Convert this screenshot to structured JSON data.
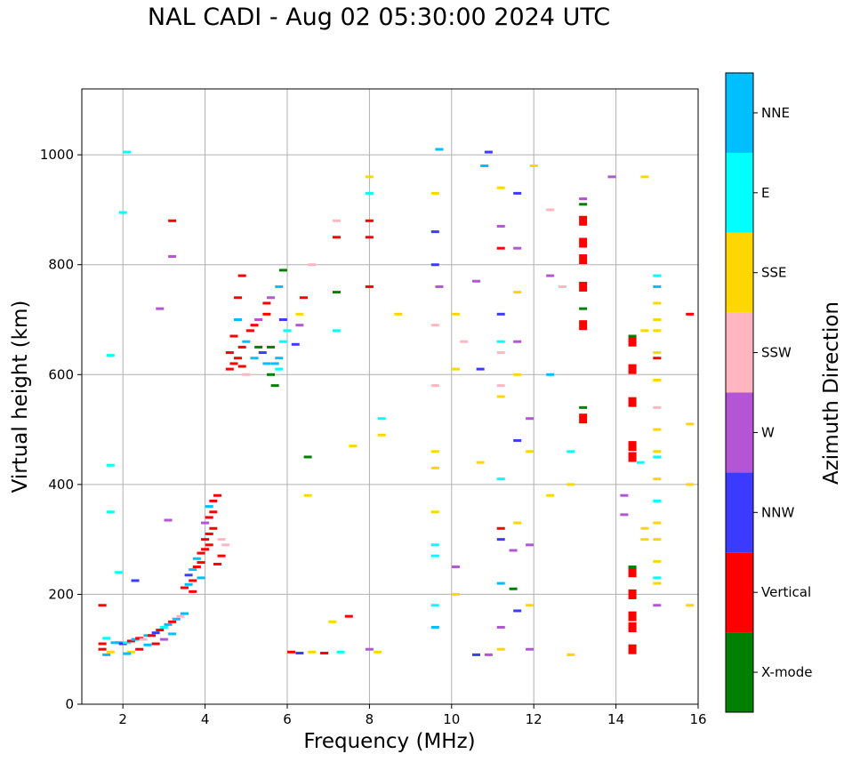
{
  "chart_data": {
    "type": "scatter",
    "title": "NAL CADI - Aug 02 05:30:00 2024 UTC",
    "xlabel": "Frequency (MHz)",
    "ylabel": "Virtual height (km)",
    "xlim": [
      1,
      16
    ],
    "ylim": [
      0,
      1120
    ],
    "xticks": [
      2,
      4,
      6,
      8,
      10,
      12,
      14,
      16
    ],
    "yticks": [
      0,
      200,
      400,
      600,
      800,
      1000
    ],
    "grid": true,
    "colorbar": {
      "title": "Azimuth Direction",
      "categories": [
        {
          "name": "X-mode",
          "color": "#008000"
        },
        {
          "name": "Vertical",
          "color": "#ff0000"
        },
        {
          "name": "NNW",
          "color": "#3b3bff"
        },
        {
          "name": "W",
          "color": "#b455d6"
        },
        {
          "name": "SSW",
          "color": "#ffb6c1"
        },
        {
          "name": "SSE",
          "color": "#ffd700"
        },
        {
          "name": "E",
          "color": "#00ffff"
        },
        {
          "name": "NNE",
          "color": "#00bfff"
        }
      ]
    },
    "points": [
      [
        1.5,
        100,
        "Vertical"
      ],
      [
        1.5,
        110,
        "Vertical"
      ],
      [
        1.6,
        90,
        "NNE"
      ],
      [
        1.6,
        120,
        "E"
      ],
      [
        1.7,
        95,
        "SSE"
      ],
      [
        1.5,
        180,
        "Vertical"
      ],
      [
        1.8,
        112,
        "NNE"
      ],
      [
        1.9,
        112,
        "NNE"
      ],
      [
        2.0,
        110,
        "NNW"
      ],
      [
        2.1,
        112,
        "E"
      ],
      [
        2.2,
        115,
        "Vertical"
      ],
      [
        2.3,
        118,
        "NNE"
      ],
      [
        2.4,
        120,
        "Vertical"
      ],
      [
        2.5,
        118,
        "SSW"
      ],
      [
        2.6,
        125,
        "NNE"
      ],
      [
        2.7,
        125,
        "Vertical"
      ],
      [
        2.8,
        130,
        "NNW"
      ],
      [
        2.9,
        135,
        "Vertical"
      ],
      [
        3.0,
        140,
        "E"
      ],
      [
        3.1,
        145,
        "NNE"
      ],
      [
        3.2,
        150,
        "Vertical"
      ],
      [
        3.3,
        155,
        "NNE"
      ],
      [
        3.4,
        160,
        "SSW"
      ],
      [
        3.5,
        165,
        "NNE"
      ],
      [
        2.2,
        95,
        "SSE"
      ],
      [
        2.4,
        100,
        "Vertical"
      ],
      [
        2.6,
        108,
        "NNE"
      ],
      [
        2.8,
        110,
        "Vertical"
      ],
      [
        3.0,
        118,
        "W"
      ],
      [
        3.2,
        128,
        "NNE"
      ],
      [
        2.1,
        92,
        "NNE"
      ],
      [
        3.5,
        212,
        "Vertical"
      ],
      [
        3.6,
        218,
        "NNE"
      ],
      [
        3.7,
        225,
        "Vertical"
      ],
      [
        3.6,
        235,
        "NNW"
      ],
      [
        3.7,
        245,
        "NNE"
      ],
      [
        3.8,
        250,
        "Vertical"
      ],
      [
        3.9,
        258,
        "Vertical"
      ],
      [
        3.8,
        265,
        "NNE"
      ],
      [
        3.9,
        275,
        "Vertical"
      ],
      [
        4.0,
        282,
        "Vertical"
      ],
      [
        4.1,
        290,
        "Vertical"
      ],
      [
        4.0,
        300,
        "Vertical"
      ],
      [
        4.1,
        310,
        "Vertical"
      ],
      [
        4.2,
        320,
        "Vertical"
      ],
      [
        4.0,
        330,
        "W"
      ],
      [
        4.1,
        340,
        "Vertical"
      ],
      [
        4.2,
        350,
        "Vertical"
      ],
      [
        4.1,
        360,
        "NNE"
      ],
      [
        4.2,
        370,
        "Vertical"
      ],
      [
        4.3,
        380,
        "Vertical"
      ],
      [
        4.4,
        300,
        "SSW"
      ],
      [
        4.5,
        290,
        "SSW"
      ],
      [
        4.3,
        255,
        "Vertical"
      ],
      [
        4.4,
        270,
        "Vertical"
      ],
      [
        3.7,
        205,
        "Vertical"
      ],
      [
        3.9,
        230,
        "NNE"
      ],
      [
        4.6,
        610,
        "Vertical"
      ],
      [
        4.7,
        620,
        "Vertical"
      ],
      [
        4.8,
        630,
        "Vertical"
      ],
      [
        4.6,
        640,
        "Vertical"
      ],
      [
        4.9,
        650,
        "Vertical"
      ],
      [
        5.0,
        660,
        "NNE"
      ],
      [
        4.7,
        670,
        "Vertical"
      ],
      [
        5.1,
        680,
        "Vertical"
      ],
      [
        5.2,
        690,
        "Vertical"
      ],
      [
        4.8,
        700,
        "NNE"
      ],
      [
        5.3,
        700,
        "W"
      ],
      [
        5.5,
        710,
        "Vertical"
      ],
      [
        4.8,
        740,
        "Vertical"
      ],
      [
        4.9,
        780,
        "Vertical"
      ],
      [
        5.4,
        640,
        "NNW"
      ],
      [
        5.6,
        650,
        "X-mode"
      ],
      [
        5.7,
        620,
        "NNE"
      ],
      [
        5.8,
        610,
        "E"
      ],
      [
        5.6,
        600,
        "X-mode"
      ],
      [
        5.7,
        580,
        "X-mode"
      ],
      [
        5.8,
        630,
        "NNE"
      ],
      [
        5.9,
        660,
        "E"
      ],
      [
        6.0,
        680,
        "E"
      ],
      [
        5.9,
        700,
        "NNW"
      ],
      [
        5.5,
        730,
        "Vertical"
      ],
      [
        5.6,
        740,
        "W"
      ],
      [
        5.8,
        760,
        "NNE"
      ],
      [
        5.9,
        790,
        "X-mode"
      ],
      [
        5.5,
        620,
        "NNE"
      ],
      [
        5.2,
        630,
        "NNE"
      ],
      [
        5.3,
        650,
        "X-mode"
      ],
      [
        5.0,
        600,
        "SSW"
      ],
      [
        4.9,
        615,
        "Vertical"
      ],
      [
        6.1,
        95,
        "Vertical"
      ],
      [
        6.3,
        93,
        "NNW"
      ],
      [
        6.6,
        95,
        "SSE"
      ],
      [
        6.9,
        93,
        "Vertical"
      ],
      [
        7.3,
        95,
        "E"
      ],
      [
        7.5,
        160,
        "Vertical"
      ],
      [
        7.1,
        150,
        "SSE"
      ],
      [
        6.5,
        450,
        "X-mode"
      ],
      [
        6.5,
        380,
        "SSE"
      ],
      [
        7.6,
        470,
        "SSE"
      ],
      [
        8.2,
        95,
        "SSE"
      ],
      [
        8.0,
        100,
        "W"
      ],
      [
        6.3,
        710,
        "SSE"
      ],
      [
        6.4,
        740,
        "Vertical"
      ],
      [
        6.2,
        655,
        "NNW"
      ],
      [
        6.3,
        690,
        "W"
      ],
      [
        6.6,
        800,
        "SSW"
      ],
      [
        8.0,
        760,
        "Vertical"
      ],
      [
        8.0,
        850,
        "Vertical"
      ],
      [
        8.0,
        880,
        "Vertical"
      ],
      [
        8.0,
        930,
        "E"
      ],
      [
        8.0,
        960,
        "SSE"
      ],
      [
        8.3,
        520,
        "E"
      ],
      [
        8.3,
        490,
        "SSE"
      ],
      [
        8.7,
        710,
        "SSE"
      ],
      [
        9.6,
        140,
        "NNE"
      ],
      [
        9.6,
        180,
        "E"
      ],
      [
        9.6,
        270,
        "E"
      ],
      [
        9.6,
        290,
        "E"
      ],
      [
        9.6,
        350,
        "SSE"
      ],
      [
        9.6,
        430,
        "SSE"
      ],
      [
        9.6,
        460,
        "SSE"
      ],
      [
        9.6,
        580,
        "SSW"
      ],
      [
        9.6,
        690,
        "SSW"
      ],
      [
        9.7,
        760,
        "W"
      ],
      [
        9.6,
        800,
        "NNW"
      ],
      [
        9.6,
        860,
        "NNW"
      ],
      [
        9.6,
        930,
        "SSE"
      ],
      [
        9.7,
        1010,
        "NNE"
      ],
      [
        10.1,
        200,
        "SSE"
      ],
      [
        10.1,
        250,
        "W"
      ],
      [
        10.1,
        610,
        "SSE"
      ],
      [
        10.1,
        710,
        "SSE"
      ],
      [
        10.3,
        660,
        "SSW"
      ],
      [
        10.6,
        770,
        "W"
      ],
      [
        10.7,
        610,
        "NNW"
      ],
      [
        10.6,
        90,
        "NNW"
      ],
      [
        10.9,
        90,
        "W"
      ],
      [
        10.7,
        440,
        "SSE"
      ],
      [
        10.8,
        980,
        "NNE"
      ],
      [
        10.9,
        1005,
        "NNW"
      ],
      [
        11.2,
        100,
        "SSE"
      ],
      [
        11.2,
        140,
        "W"
      ],
      [
        11.2,
        220,
        "NNE"
      ],
      [
        11.2,
        300,
        "NNW"
      ],
      [
        11.2,
        320,
        "Vertical"
      ],
      [
        11.2,
        410,
        "E"
      ],
      [
        11.2,
        560,
        "SSE"
      ],
      [
        11.2,
        580,
        "SSW"
      ],
      [
        11.2,
        640,
        "SSW"
      ],
      [
        11.2,
        660,
        "E"
      ],
      [
        11.2,
        710,
        "NNW"
      ],
      [
        11.2,
        830,
        "Vertical"
      ],
      [
        11.2,
        870,
        "W"
      ],
      [
        11.2,
        940,
        "SSE"
      ],
      [
        11.5,
        210,
        "X-mode"
      ],
      [
        11.5,
        280,
        "W"
      ],
      [
        11.6,
        170,
        "NNW"
      ],
      [
        11.6,
        330,
        "SSE"
      ],
      [
        11.6,
        480,
        "NNW"
      ],
      [
        11.6,
        600,
        "SSE"
      ],
      [
        11.6,
        660,
        "W"
      ],
      [
        11.6,
        750,
        "SSE"
      ],
      [
        11.6,
        830,
        "W"
      ],
      [
        11.6,
        930,
        "NNW"
      ],
      [
        11.9,
        100,
        "W"
      ],
      [
        11.9,
        180,
        "SSE"
      ],
      [
        11.9,
        290,
        "W"
      ],
      [
        11.9,
        460,
        "SSE"
      ],
      [
        11.9,
        520,
        "W"
      ],
      [
        12.0,
        980,
        "SSE"
      ],
      [
        12.4,
        380,
        "SSE"
      ],
      [
        12.4,
        600,
        "NNE"
      ],
      [
        12.4,
        780,
        "W"
      ],
      [
        12.4,
        900,
        "SSW"
      ],
      [
        12.7,
        760,
        "SSW"
      ],
      [
        12.9,
        90,
        "SSE"
      ],
      [
        12.9,
        400,
        "SSE"
      ],
      [
        12.9,
        460,
        "E"
      ],
      [
        13.2,
        520,
        "Vertical"
      ],
      [
        13.2,
        540,
        "X-mode"
      ],
      [
        13.2,
        690,
        "Vertical"
      ],
      [
        13.2,
        720,
        "X-mode"
      ],
      [
        13.2,
        760,
        "Vertical"
      ],
      [
        13.2,
        810,
        "Vertical"
      ],
      [
        13.2,
        840,
        "Vertical"
      ],
      [
        13.2,
        880,
        "Vertical"
      ],
      [
        13.2,
        910,
        "X-mode"
      ],
      [
        13.2,
        920,
        "W"
      ],
      [
        13.9,
        960,
        "W"
      ],
      [
        14.2,
        380,
        "W"
      ],
      [
        14.2,
        345,
        "W"
      ],
      [
        14.4,
        100,
        "Vertical"
      ],
      [
        14.4,
        140,
        "Vertical"
      ],
      [
        14.4,
        160,
        "Vertical"
      ],
      [
        14.4,
        200,
        "Vertical"
      ],
      [
        14.4,
        240,
        "Vertical"
      ],
      [
        14.4,
        250,
        "X-mode"
      ],
      [
        14.4,
        450,
        "Vertical"
      ],
      [
        14.4,
        470,
        "Vertical"
      ],
      [
        14.4,
        550,
        "Vertical"
      ],
      [
        14.4,
        610,
        "Vertical"
      ],
      [
        14.4,
        660,
        "Vertical"
      ],
      [
        14.4,
        670,
        "X-mode"
      ],
      [
        14.6,
        440,
        "E"
      ],
      [
        14.7,
        320,
        "SSE"
      ],
      [
        14.7,
        300,
        "SSE"
      ],
      [
        14.7,
        960,
        "SSE"
      ],
      [
        14.7,
        680,
        "SSE"
      ],
      [
        15.0,
        180,
        "W"
      ],
      [
        15.0,
        220,
        "SSE"
      ],
      [
        15.0,
        230,
        "E"
      ],
      [
        15.0,
        260,
        "SSE"
      ],
      [
        15.0,
        300,
        "SSE"
      ],
      [
        15.0,
        330,
        "SSE"
      ],
      [
        15.0,
        370,
        "E"
      ],
      [
        15.0,
        410,
        "SSE"
      ],
      [
        15.0,
        450,
        "E"
      ],
      [
        15.0,
        460,
        "SSE"
      ],
      [
        15.0,
        500,
        "SSE"
      ],
      [
        15.0,
        540,
        "SSW"
      ],
      [
        15.0,
        590,
        "SSE"
      ],
      [
        15.0,
        630,
        "Vertical"
      ],
      [
        15.0,
        640,
        "SSE"
      ],
      [
        15.0,
        680,
        "SSE"
      ],
      [
        15.0,
        700,
        "SSE"
      ],
      [
        15.0,
        730,
        "SSE"
      ],
      [
        15.0,
        760,
        "NNE"
      ],
      [
        15.0,
        780,
        "E"
      ],
      [
        15.8,
        180,
        "SSE"
      ],
      [
        15.8,
        400,
        "SSE"
      ],
      [
        15.8,
        510,
        "SSE"
      ],
      [
        15.8,
        710,
        "Vertical"
      ],
      [
        2.1,
        1005,
        "E"
      ],
      [
        2.0,
        895,
        "E"
      ],
      [
        3.2,
        880,
        "Vertical"
      ],
      [
        3.2,
        815,
        "W"
      ],
      [
        2.9,
        720,
        "W"
      ],
      [
        1.7,
        635,
        "E"
      ],
      [
        1.7,
        435,
        "E"
      ],
      [
        1.7,
        350,
        "E"
      ],
      [
        1.9,
        240,
        "E"
      ],
      [
        2.3,
        225,
        "NNW"
      ],
      [
        3.1,
        335,
        "W"
      ],
      [
        7.2,
        850,
        "Vertical"
      ],
      [
        7.2,
        750,
        "X-mode"
      ],
      [
        7.2,
        680,
        "E"
      ],
      [
        7.2,
        880,
        "SSW"
      ]
    ]
  }
}
